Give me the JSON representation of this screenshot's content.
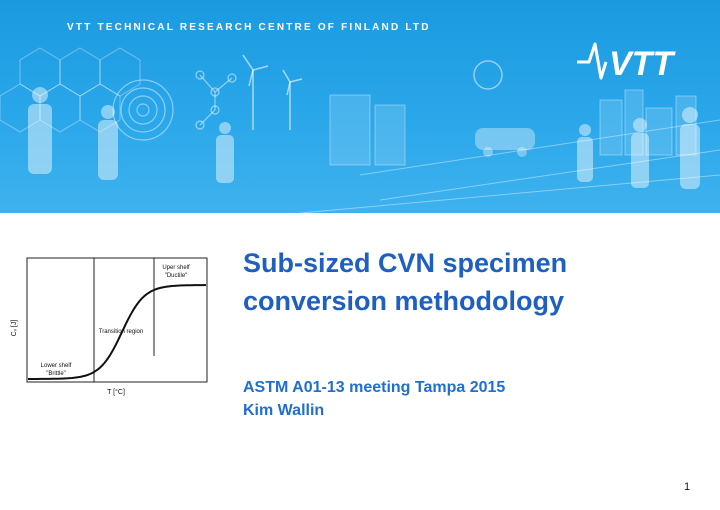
{
  "header": {
    "organization": "VTT TECHNICAL RESEARCH CENTRE OF FINLAND LTD",
    "logo_text": "VTT",
    "banner_color": "#2aa3e8"
  },
  "slide": {
    "title_line1": "Sub-sized CVN specimen",
    "title_line2": "conversion methodology",
    "subtitle_line1": "ASTM A01-13 meeting Tampa 2015",
    "subtitle_line2": "Kim Wallin",
    "page_number": "1"
  },
  "chart_data": {
    "type": "line",
    "ylabel": "Cᵥ [J]",
    "xlabel": "T [°C]",
    "annotations": {
      "upper_line1": "Uper shelf",
      "upper_line2": "\"Ductile\"",
      "transition": "Transition region",
      "lower_line1": "Lower shelf",
      "lower_line2": "\"Brittle\""
    },
    "grid": false
  }
}
